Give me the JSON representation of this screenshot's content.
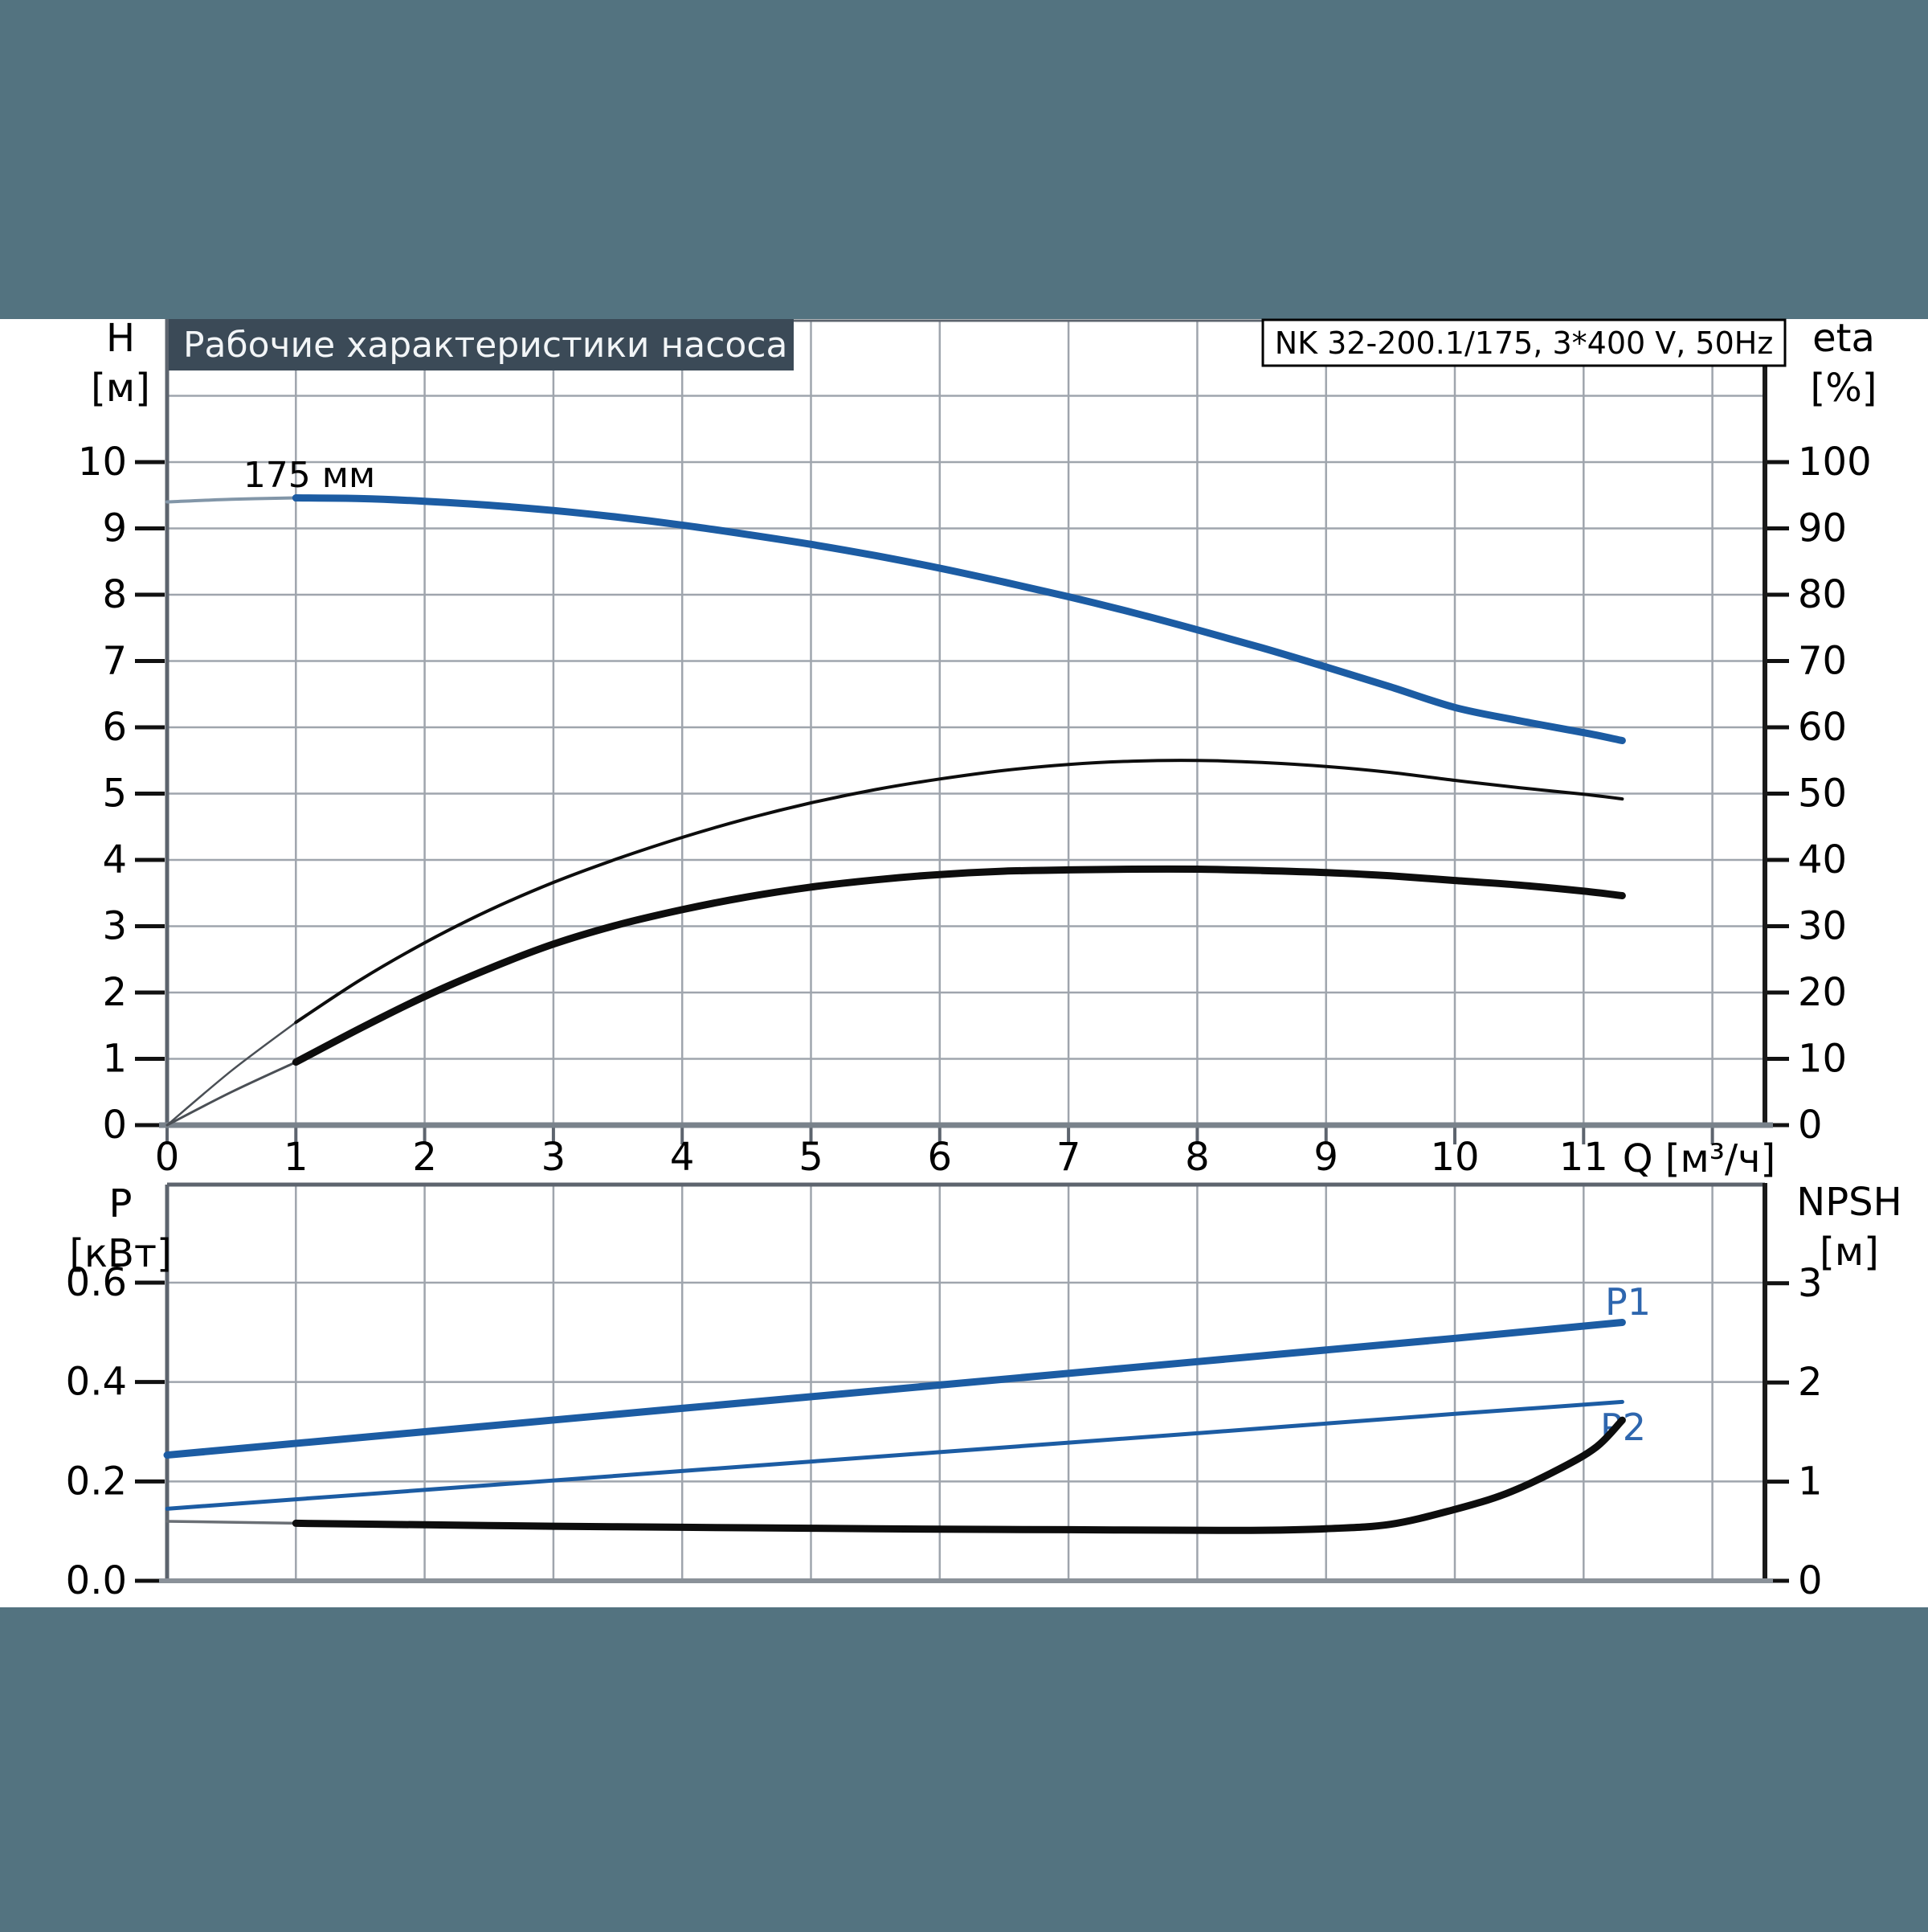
{
  "title_banner": "Рабочие характеристики насоса",
  "pump_type": "NK 32-200.1/175, 3*400 V, 50Hz",
  "colors": {
    "background": "#537380",
    "banner": "#3b4a57",
    "curve_blue": "#1c5ca3",
    "label_blue": "#2e66ae",
    "curve_black": "#0d0d0d",
    "grid": "#9fa5ad",
    "frame": "#5d646e",
    "axis_bottom": "#79828b",
    "white": "#ffffff"
  },
  "chart_data": [
    {
      "type": "line",
      "title": "Рабочие характеристики насоса",
      "x_axis": {
        "label": "Q [м³/ч]",
        "ticks": [
          0,
          1,
          2,
          3,
          4,
          5,
          6,
          7,
          8,
          9,
          10,
          11,
          12
        ],
        "labels": [
          "0",
          "1",
          "2",
          "3",
          "4",
          "5",
          "6",
          "7",
          "8",
          "9",
          "10",
          "11",
          ""
        ],
        "grid": [
          1,
          2,
          3,
          4,
          5,
          6,
          7,
          8,
          9,
          10,
          11,
          12
        ],
        "lim": [
          0,
          12.4
        ]
      },
      "left_axis": {
        "name": "H",
        "unit": "[м]",
        "ticks": [
          0,
          1,
          2,
          3,
          4,
          5,
          6,
          7,
          8,
          9,
          10
        ],
        "labels": [
          "0",
          "1",
          "2",
          "3",
          "4",
          "5",
          "6",
          "7",
          "8",
          "9",
          "10"
        ],
        "grid": [
          1,
          2,
          3,
          4,
          5,
          6,
          7,
          8,
          9,
          10,
          11
        ],
        "lim": [
          0,
          12.1
        ]
      },
      "right_axis": {
        "name": "eta",
        "unit": "[%]",
        "ticks": [
          0,
          10,
          20,
          30,
          40,
          50,
          60,
          70,
          80,
          90,
          100
        ],
        "labels": [
          "0",
          "10",
          "20",
          "30",
          "40",
          "50",
          "60",
          "70",
          "80",
          "90",
          "100"
        ],
        "lim": [
          0,
          121
        ]
      },
      "series": [
        {
          "id": "head-175mm",
          "label": "175 мм",
          "axis": "left",
          "color": "#1c5ca3",
          "width": 9,
          "thin_until": 0.9,
          "thin_color": "#8296a8",
          "thin_width": 4,
          "points": [
            [
              0,
              9.4
            ],
            [
              0.5,
              9.44
            ],
            [
              1,
              9.46
            ],
            [
              1.5,
              9.45
            ],
            [
              2,
              9.41
            ],
            [
              2.5,
              9.35
            ],
            [
              3,
              9.27
            ],
            [
              3.5,
              9.17
            ],
            [
              4,
              9.05
            ],
            [
              4.5,
              8.91
            ],
            [
              5,
              8.76
            ],
            [
              5.5,
              8.59
            ],
            [
              6,
              8.4
            ],
            [
              6.5,
              8.19
            ],
            [
              7,
              7.97
            ],
            [
              7.5,
              7.73
            ],
            [
              8,
              7.47
            ],
            [
              8.5,
              7.2
            ],
            [
              9,
              6.91
            ],
            [
              9.5,
              6.61
            ],
            [
              10,
              6.3
            ],
            [
              10.5,
              6.1
            ],
            [
              11,
              5.92
            ],
            [
              11.3,
              5.8
            ]
          ]
        },
        {
          "id": "eta-pump",
          "label": "",
          "axis": "right",
          "color": "#0d0d0d",
          "width": 4,
          "thin_until": 1.0,
          "thin_color": "#4a4f55",
          "thin_width": 2.5,
          "points": [
            [
              0,
              0
            ],
            [
              0.5,
              8.2
            ],
            [
              1,
              15.5
            ],
            [
              1.5,
              21.9
            ],
            [
              2,
              27.5
            ],
            [
              2.5,
              32.4
            ],
            [
              3,
              36.6
            ],
            [
              3.5,
              40.2
            ],
            [
              4,
              43.4
            ],
            [
              4.5,
              46.2
            ],
            [
              5,
              48.6
            ],
            [
              5.5,
              50.6
            ],
            [
              6,
              52.2
            ],
            [
              6.5,
              53.5
            ],
            [
              7,
              54.4
            ],
            [
              7.5,
              54.9
            ],
            [
              8,
              55.0
            ],
            [
              8.5,
              54.7
            ],
            [
              9,
              54.1
            ],
            [
              9.5,
              53.2
            ],
            [
              10,
              52.0
            ],
            [
              10.5,
              50.9
            ],
            [
              11,
              49.9
            ],
            [
              11.3,
              49.2
            ]
          ]
        },
        {
          "id": "eta-pump-motor",
          "label": "",
          "axis": "right",
          "color": "#0d0d0d",
          "width": 9,
          "thin_until": 1.0,
          "thin_color": "#4a4f55",
          "thin_width": 3,
          "points": [
            [
              0,
              0
            ],
            [
              0.5,
              5.0
            ],
            [
              1,
              9.5
            ],
            [
              1.5,
              14.6
            ],
            [
              2,
              19.4
            ],
            [
              2.5,
              23.6
            ],
            [
              3,
              27.3
            ],
            [
              3.5,
              30.2
            ],
            [
              4,
              32.5
            ],
            [
              4.5,
              34.4
            ],
            [
              5,
              35.9
            ],
            [
              5.5,
              37.0
            ],
            [
              6,
              37.8
            ],
            [
              6.5,
              38.3
            ],
            [
              7,
              38.5
            ],
            [
              7.5,
              38.6
            ],
            [
              8,
              38.6
            ],
            [
              8.5,
              38.4
            ],
            [
              9,
              38.1
            ],
            [
              9.5,
              37.6
            ],
            [
              10,
              36.9
            ],
            [
              10.5,
              36.2
            ],
            [
              11,
              35.3
            ],
            [
              11.3,
              34.6
            ]
          ]
        }
      ]
    },
    {
      "type": "line",
      "x_axis": {
        "label": "",
        "ticks": [],
        "labels": [],
        "grid": [
          1,
          2,
          3,
          4,
          5,
          6,
          7,
          8,
          9,
          10,
          11,
          12
        ],
        "lim": [
          0,
          12.4
        ]
      },
      "left_axis": {
        "name": "P",
        "unit": "[кВт]",
        "ticks": [
          0,
          0.2,
          0.4,
          0.6
        ],
        "labels": [
          "0.0",
          "0.2",
          "0.4",
          "0.6"
        ],
        "grid": [
          0.2,
          0.4,
          0.6
        ],
        "lim": [
          0,
          0.8
        ]
      },
      "right_axis": {
        "name": "NPSH",
        "unit": "[м]",
        "ticks": [
          0,
          1,
          2,
          3
        ],
        "labels": [
          "0",
          "1",
          "2",
          "3"
        ],
        "lim": [
          0,
          4
        ]
      },
      "series": [
        {
          "id": "p1",
          "label": "P1",
          "axis": "left",
          "color": "#1c5ca3",
          "width": 9,
          "points": [
            [
              0,
              0.253
            ],
            [
              2,
              0.3
            ],
            [
              4,
              0.347
            ],
            [
              6,
              0.394
            ],
            [
              8,
              0.441
            ],
            [
              10,
              0.488
            ],
            [
              11.3,
              0.52
            ]
          ]
        },
        {
          "id": "p2",
          "label": "P2",
          "axis": "left",
          "color": "#1c5ca3",
          "width": 5,
          "points": [
            [
              0,
              0.145
            ],
            [
              2,
              0.183
            ],
            [
              4,
              0.221
            ],
            [
              6,
              0.259
            ],
            [
              8,
              0.297
            ],
            [
              10,
              0.336
            ],
            [
              11.3,
              0.36
            ]
          ]
        },
        {
          "id": "npsh",
          "label": "",
          "axis": "right",
          "color": "#0d0d0d",
          "width": 9,
          "thin_until": 1.0,
          "thin_color": "#6a6f75",
          "thin_width": 3.5,
          "points": [
            [
              0,
              0.6
            ],
            [
              1,
              0.58
            ],
            [
              2,
              0.565
            ],
            [
              3,
              0.55
            ],
            [
              4,
              0.54
            ],
            [
              5,
              0.53
            ],
            [
              6,
              0.52
            ],
            [
              7,
              0.515
            ],
            [
              8,
              0.51
            ],
            [
              8.5,
              0.51
            ],
            [
              9,
              0.525
            ],
            [
              9.5,
              0.57
            ],
            [
              10,
              0.72
            ],
            [
              10.4,
              0.88
            ],
            [
              10.8,
              1.12
            ],
            [
              11.1,
              1.35
            ],
            [
              11.3,
              1.62
            ]
          ]
        }
      ]
    }
  ]
}
